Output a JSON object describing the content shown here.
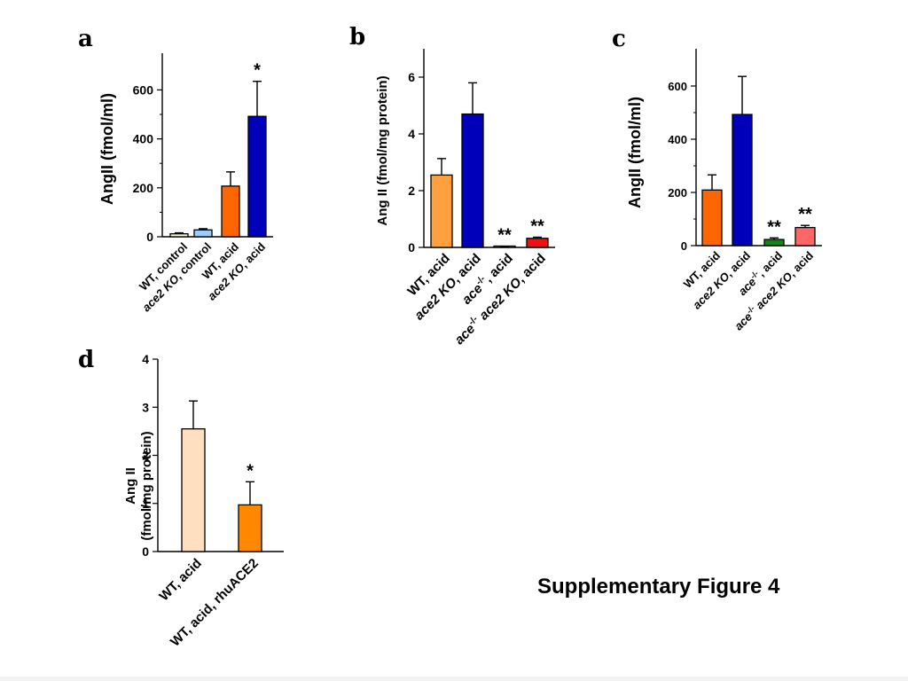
{
  "figure_title": "Supplementary Figure 4",
  "chart_data": [
    {
      "panel": "a",
      "type": "bar",
      "ylabel": "AngII (fmol/ml)",
      "ylim": [
        0,
        750
      ],
      "yticks": [
        0,
        200,
        400,
        600
      ],
      "categories": [
        "WT, control",
        "ace2 KO, control",
        "WT, acid",
        "ace2 KO, acid"
      ],
      "values": [
        12,
        28,
        207,
        492
      ],
      "errors": [
        4,
        5,
        58,
        143
      ],
      "colors": [
        "#fffbe0",
        "#99ccff",
        "#ff6600",
        "#0000bb"
      ],
      "significance": [
        "",
        "",
        "",
        "*"
      ]
    },
    {
      "panel": "b",
      "type": "bar",
      "ylabel": "Ang II (fmol/mg protein)",
      "ylim": [
        0,
        7
      ],
      "yticks": [
        0,
        2,
        4,
        6
      ],
      "categories": [
        "WT, acid",
        "ace2 KO, acid",
        "ace-/-, acid",
        "ace-/- ace2 KO, acid"
      ],
      "values": [
        2.55,
        4.7,
        0.03,
        0.32
      ],
      "errors": [
        0.58,
        1.1,
        0.01,
        0.04
      ],
      "colors": [
        "#ffa040",
        "#0000bb",
        "#cfe8a0",
        "#ee1111"
      ],
      "significance": [
        "",
        "",
        "**",
        "**"
      ]
    },
    {
      "panel": "c",
      "type": "bar",
      "ylabel": "AngII (fmol/ml)",
      "ylim": [
        0,
        740
      ],
      "yticks": [
        0,
        200,
        400,
        600
      ],
      "categories": [
        "WT, acid",
        "ace2 KO, acid",
        "ace-/-, acid",
        "ace-/- ace2 KO, acid"
      ],
      "values": [
        209,
        493,
        23,
        68
      ],
      "errors": [
        57,
        143,
        6,
        8
      ],
      "colors": [
        "#ff6600",
        "#0000bb",
        "#118811",
        "#ff6666"
      ],
      "significance": [
        "",
        "",
        "**",
        "**"
      ]
    },
    {
      "panel": "d",
      "type": "bar",
      "ylabel": "Ang II (fmol/mg protein)",
      "ylim": [
        0,
        4
      ],
      "yticks": [
        0,
        1,
        2,
        3,
        4
      ],
      "categories": [
        "WT, acid",
        "WT, acid, rhuACE2"
      ],
      "values": [
        2.55,
        0.97
      ],
      "errors": [
        0.58,
        0.48
      ],
      "colors": [
        "#ffdfc0",
        "#ff8800"
      ],
      "significance": [
        "",
        "*"
      ]
    }
  ]
}
